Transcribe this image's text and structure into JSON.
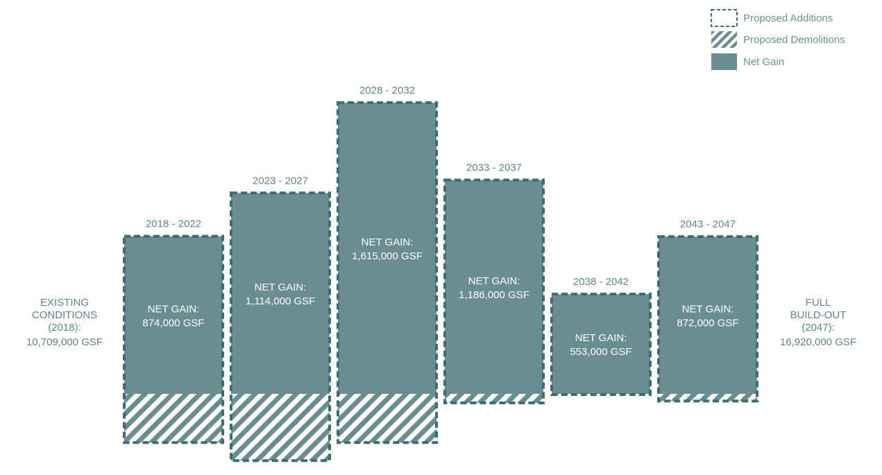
{
  "colors": {
    "net_gain": "#6a8d91",
    "border": "#3e6c73",
    "hatch_stripe": "#6a8d91",
    "hatch_bg": "#ffffff",
    "text_dark": "#5e858c",
    "text_light": "#ffffff"
  },
  "legend": {
    "additions": "Proposed Additions",
    "demolitions": "Proposed Demolitions",
    "net_gain": "Net Gain"
  },
  "existing": {
    "lines": [
      "EXISTING",
      "CONDITIONS",
      "(2018):",
      "10,709,000 GSF"
    ]
  },
  "full_buildout": {
    "lines": [
      "FULL",
      "BUILD-OUT",
      "(2047):",
      "16,920,000 GSF"
    ]
  },
  "chart_data": {
    "type": "bar",
    "style": "waterfall",
    "units": "GSF",
    "start_value": 10709000,
    "end_value": 16920000,
    "categories": [
      "2018 - 2022",
      "2023 - 2027",
      "2028 - 2032",
      "2033 - 2037",
      "2038 - 2042",
      "2043 - 2047"
    ],
    "series": [
      {
        "name": "Net Gain",
        "values": [
          874000,
          1114000,
          1615000,
          1186000,
          553000,
          872000
        ]
      },
      {
        "name": "Proposed Demolitions",
        "values": [
          270000,
          370000,
          270000,
          50000,
          0,
          40000
        ]
      },
      {
        "name": "Proposed Additions",
        "values": [
          1144000,
          1484000,
          1885000,
          1236000,
          553000,
          912000
        ]
      }
    ],
    "bar_labels": [
      [
        "NET GAIN:",
        "874,000 GSF"
      ],
      [
        "NET GAIN:",
        "1,114,000 GSF"
      ],
      [
        "NET GAIN:",
        "1,615,000 GSF"
      ],
      [
        "NET GAIN:",
        "1,186,000 GSF"
      ],
      [
        "NET GAIN:",
        "553,000 GSF"
      ],
      [
        "NET GAIN:",
        "872,000 GSF"
      ]
    ],
    "legend_position": "top-right",
    "grid": false
  }
}
